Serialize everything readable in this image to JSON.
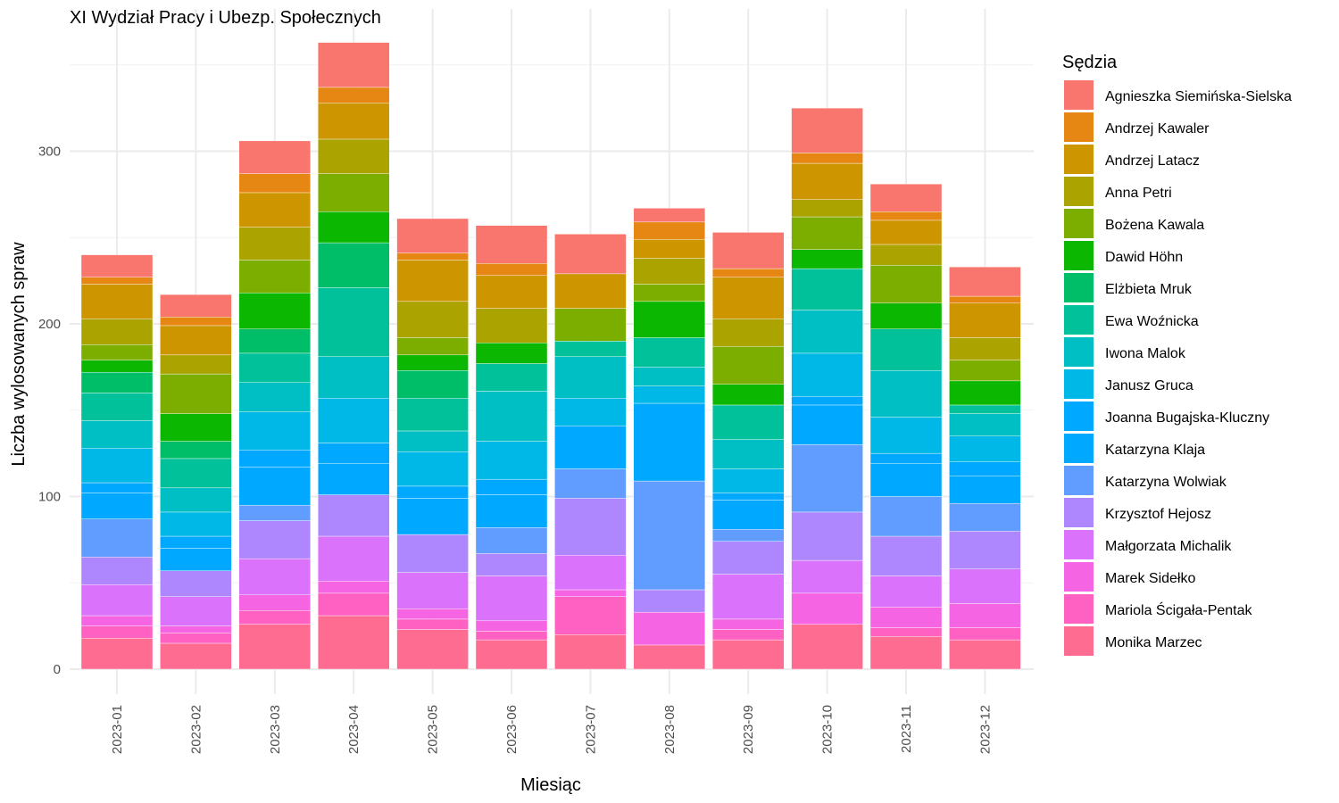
{
  "chart_data": {
    "type": "bar",
    "stacked": true,
    "title": "XI Wydział Pracy i Ubezp. Społecznych",
    "xlabel": "Miesiąc",
    "ylabel": "Liczba wylosowanych spraw",
    "ylim": [
      0,
      380
    ],
    "y_ticks": [
      0,
      100,
      200,
      300
    ],
    "grid": true,
    "legend_title": "Sędzia",
    "legend_position": "right",
    "categories": [
      "2023-01",
      "2023-02",
      "2023-03",
      "2023-04",
      "2023-05",
      "2023-06",
      "2023-07",
      "2023-08",
      "2023-09",
      "2023-10",
      "2023-11",
      "2023-12"
    ],
    "series": [
      {
        "name": "Agnieszka Siemińska-Sielska",
        "color": "#F8766D",
        "values": [
          13,
          13,
          19,
          26,
          20,
          22,
          23,
          8,
          21,
          26,
          16,
          17
        ]
      },
      {
        "name": "Andrzej Kawaler",
        "color": "#E68613",
        "values": [
          4,
          5,
          11,
          9,
          4,
          7,
          0,
          10,
          5,
          6,
          5,
          4
        ]
      },
      {
        "name": "Andrzej Latacz",
        "color": "#CD9600",
        "values": [
          20,
          17,
          20,
          21,
          24,
          19,
          20,
          11,
          24,
          21,
          14,
          20
        ]
      },
      {
        "name": "Anna Petri",
        "color": "#ABA300",
        "values": [
          15,
          11,
          19,
          20,
          21,
          20,
          0,
          15,
          16,
          10,
          12,
          13
        ]
      },
      {
        "name": "Bożena Kawala",
        "color": "#7CAE00",
        "values": [
          9,
          23,
          19,
          22,
          10,
          0,
          19,
          10,
          22,
          19,
          22,
          12
        ]
      },
      {
        "name": "Dawid Höhn",
        "color": "#0CB702",
        "values": [
          7,
          16,
          21,
          18,
          9,
          12,
          0,
          21,
          12,
          11,
          15,
          14
        ]
      },
      {
        "name": "Elżbieta Mruk",
        "color": "#00BE67",
        "values": [
          12,
          10,
          14,
          26,
          16,
          0,
          0,
          0,
          0,
          0,
          0,
          0
        ]
      },
      {
        "name": "Ewa Woźnicka",
        "color": "#00C19A",
        "values": [
          16,
          17,
          17,
          40,
          19,
          16,
          9,
          17,
          20,
          24,
          24,
          5
        ]
      },
      {
        "name": "Iwona Malok",
        "color": "#00BFC4",
        "values": [
          16,
          14,
          17,
          24,
          12,
          29,
          24,
          11,
          17,
          25,
          27,
          13
        ]
      },
      {
        "name": "Janusz Gruca",
        "color": "#00B8E7",
        "values": [
          20,
          14,
          22,
          26,
          20,
          22,
          16,
          10,
          14,
          25,
          21,
          15
        ]
      },
      {
        "name": "Joanna Bugajska-Kluczny",
        "color": "#00A9FF",
        "values": [
          6,
          7,
          10,
          12,
          7,
          9,
          25,
          45,
          4,
          5,
          6,
          8
        ]
      },
      {
        "name": "Katarzyna Klaja",
        "color": "#00A9FF",
        "values": [
          15,
          13,
          22,
          18,
          21,
          19,
          0,
          0,
          17,
          23,
          19,
          16
        ]
      },
      {
        "name": "Katarzyna Wolwiak",
        "color": "#619CFF",
        "values": [
          22,
          0,
          9,
          0,
          0,
          15,
          17,
          63,
          7,
          39,
          23,
          16
        ]
      },
      {
        "name": "Krzysztof Hejosz",
        "color": "#ae87ff",
        "values": [
          16,
          15,
          22,
          24,
          22,
          13,
          33,
          13,
          19,
          28,
          23,
          22
        ]
      },
      {
        "name": "Małgorzata Michalik",
        "color": "#db72fb",
        "values": [
          18,
          17,
          21,
          26,
          21,
          26,
          20,
          0,
          26,
          19,
          18,
          20
        ]
      },
      {
        "name": "Marek Sidełko",
        "color": "#f564e3",
        "values": [
          6,
          4,
          9,
          7,
          6,
          6,
          4,
          19,
          6,
          18,
          12,
          14
        ]
      },
      {
        "name": "Mariola Ścigała-Pentak",
        "color": "#FF61C3",
        "values": [
          7,
          6,
          8,
          13,
          6,
          5,
          22,
          0,
          6,
          0,
          5,
          7
        ]
      },
      {
        "name": "Monika Marzec",
        "color": "#FF6C91",
        "values": [
          18,
          15,
          26,
          31,
          23,
          17,
          20,
          14,
          17,
          26,
          19,
          17
        ]
      }
    ]
  }
}
